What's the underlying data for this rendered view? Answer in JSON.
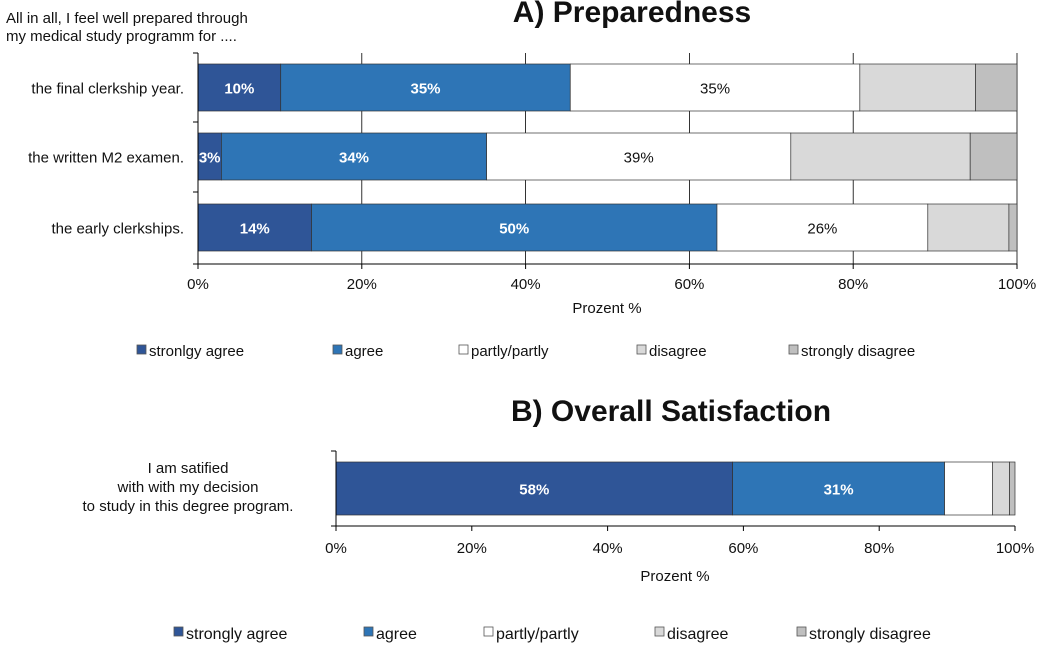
{
  "colors": {
    "strongly_agree": "#2f5597",
    "agree": "#2e75b6",
    "partly": "#ffffff",
    "disagree": "#d9d9d9",
    "strongly_disagree": "#bfbfbf",
    "axis": "#000000",
    "grid": "#000000"
  },
  "chart_data": [
    {
      "type": "bar",
      "orientation": "horizontal",
      "stacked": true,
      "title": "A) Preparedness",
      "subtitle": "All in all, I feel well prepared through my medical study programm for ....",
      "subtitle_lines": [
        "All in all, I feel well prepared through",
        "my medical study programm for ...."
      ],
      "xlabel": "Prozent %",
      "ylabel": "",
      "xlim": [
        0,
        100
      ],
      "xticks": [
        "0%",
        "20%",
        "40%",
        "60%",
        "80%",
        "100%"
      ],
      "grid": true,
      "legend_position": "bottom",
      "categories": [
        "the final clerkship year.",
        "the written M2 examen.",
        "the early clerkships."
      ],
      "series": [
        {
          "name": "stronlgy agree",
          "color_key": "strongly_agree",
          "values": [
            10,
            3,
            14
          ],
          "labels": [
            "10%",
            "3%",
            "14%"
          ]
        },
        {
          "name": "agree",
          "color_key": "agree",
          "values": [
            35,
            34,
            50
          ],
          "labels": [
            "35%",
            "34%",
            "50%"
          ]
        },
        {
          "name": "partly/partly",
          "color_key": "partly",
          "values": [
            35,
            39,
            26
          ],
          "labels": [
            "35%",
            "39%",
            "26%"
          ]
        },
        {
          "name": "disagree",
          "color_key": "disagree",
          "values": [
            14,
            23,
            10
          ],
          "labels": [
            "",
            "",
            ""
          ]
        },
        {
          "name": "strongly disagree",
          "color_key": "strongly_disagree",
          "values": [
            5,
            6,
            1
          ],
          "labels": [
            "",
            "",
            ""
          ]
        }
      ]
    },
    {
      "type": "bar",
      "orientation": "horizontal",
      "stacked": true,
      "title": "B) Overall Satisfaction",
      "xlabel": "Prozent %",
      "ylabel": "",
      "xlim": [
        0,
        100
      ],
      "xticks": [
        "0%",
        "20%",
        "40%",
        "60%",
        "80%",
        "100%"
      ],
      "grid": false,
      "legend_position": "bottom",
      "categories": [
        "I am satified with with my decision to study in this degree program."
      ],
      "category_lines": [
        [
          "I am satified",
          "with with my decision",
          "to study in this degree program."
        ]
      ],
      "series": [
        {
          "name": "strongly agree",
          "color_key": "strongly_agree",
          "values": [
            58
          ],
          "labels": [
            "58%"
          ]
        },
        {
          "name": "agree",
          "color_key": "agree",
          "values": [
            31
          ],
          "labels": [
            "31%"
          ]
        },
        {
          "name": "partly/partly",
          "color_key": "partly",
          "values": [
            7
          ],
          "labels": [
            ""
          ]
        },
        {
          "name": "disagree",
          "color_key": "disagree",
          "values": [
            2.5
          ],
          "labels": [
            ""
          ]
        },
        {
          "name": "strongly disagree",
          "color_key": "strongly_disagree",
          "values": [
            0.8
          ],
          "labels": [
            ""
          ]
        }
      ]
    }
  ]
}
